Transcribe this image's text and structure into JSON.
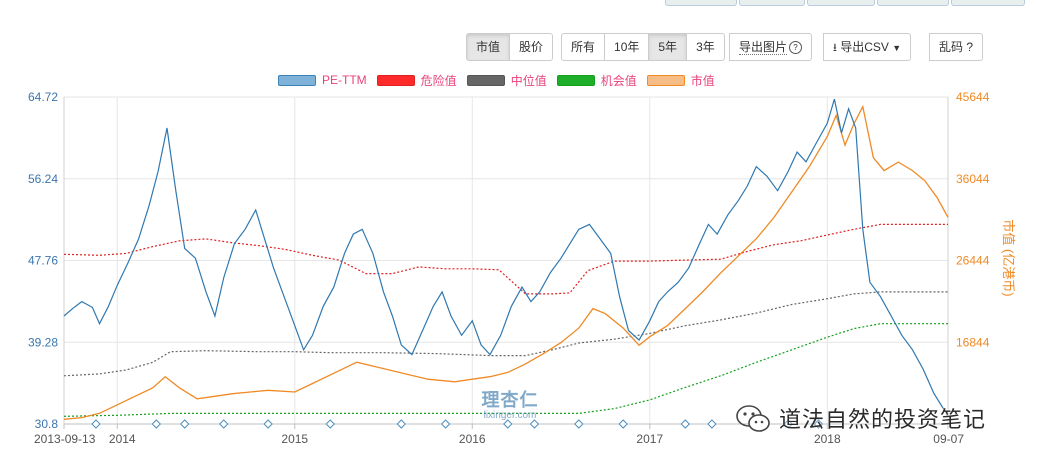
{
  "toolbar": {
    "group_metric": [
      "市值",
      "股价"
    ],
    "group_range": [
      "所有",
      "10年",
      "5年",
      "3年"
    ],
    "export_image": "导出图片",
    "export_image_help": "?",
    "export_csv": "导出CSV",
    "garbled": "乱码 ?",
    "active_metric": "市值",
    "active_range": "5年"
  },
  "legend": {
    "items": [
      {
        "label": "PE-TTM",
        "color": "#3b82b6",
        "fill": "#7fb2d8"
      },
      {
        "label": "危险值",
        "color": "#e02020",
        "fill": "#ff2a2a"
      },
      {
        "label": "中位值",
        "color": "#555555",
        "fill": "#666666"
      },
      {
        "label": "机会值",
        "color": "#14a01e",
        "fill": "#1fae2a"
      },
      {
        "label": "市值",
        "color": "#ef8a25",
        "fill": "#f7bd86"
      }
    ]
  },
  "watermark": {
    "cn": "理杏仁",
    "en": "lixinger.com"
  },
  "wechat": {
    "text": "道法自然的投资笔记"
  },
  "chart_data": {
    "type": "line",
    "x_tick_labels": [
      "2013-09-13",
      "2014",
      "2015",
      "2016",
      "2017",
      "2018",
      "09-07"
    ],
    "x_tick_years": [
      2013.7,
      2014.0,
      2015.0,
      2016.0,
      2017.0,
      2018.0,
      2018.68
    ],
    "y_left": {
      "ticks": [
        30.8,
        39.28,
        47.76,
        56.24,
        64.72
      ],
      "range": [
        30.8,
        64.72
      ]
    },
    "y_right": {
      "label": "市值 (亿港币)",
      "ticks": [
        16844,
        26444,
        36044,
        45644
      ],
      "range": [
        7244,
        45644
      ]
    },
    "grid": true,
    "series": [
      {
        "name": "PE-TTM",
        "axis": "left",
        "points": [
          [
            2013.7,
            42.0
          ],
          [
            2013.75,
            42.8
          ],
          [
            2013.8,
            43.5
          ],
          [
            2013.86,
            42.9
          ],
          [
            2013.9,
            41.2
          ],
          [
            2013.95,
            43.0
          ],
          [
            2014.0,
            45.2
          ],
          [
            2014.06,
            47.5
          ],
          [
            2014.12,
            50.0
          ],
          [
            2014.18,
            53.5
          ],
          [
            2014.23,
            57.0
          ],
          [
            2014.28,
            61.5
          ],
          [
            2014.33,
            55.0
          ],
          [
            2014.38,
            49.0
          ],
          [
            2014.44,
            48.0
          ],
          [
            2014.5,
            44.5
          ],
          [
            2014.55,
            42.0
          ],
          [
            2014.6,
            46.0
          ],
          [
            2014.66,
            49.5
          ],
          [
            2014.72,
            51.0
          ],
          [
            2014.78,
            53.0
          ],
          [
            2014.83,
            50.0
          ],
          [
            2014.88,
            47.0
          ],
          [
            2014.94,
            44.0
          ],
          [
            2015.0,
            41.0
          ],
          [
            2015.05,
            38.5
          ],
          [
            2015.1,
            40.0
          ],
          [
            2015.16,
            43.0
          ],
          [
            2015.22,
            45.0
          ],
          [
            2015.28,
            48.5
          ],
          [
            2015.33,
            50.5
          ],
          [
            2015.38,
            51.0
          ],
          [
            2015.44,
            48.5
          ],
          [
            2015.5,
            44.5
          ],
          [
            2015.55,
            42.0
          ],
          [
            2015.6,
            39.0
          ],
          [
            2015.66,
            38.0
          ],
          [
            2015.72,
            40.5
          ],
          [
            2015.78,
            43.0
          ],
          [
            2015.83,
            44.5
          ],
          [
            2015.88,
            42.0
          ],
          [
            2015.94,
            40.0
          ],
          [
            2016.0,
            41.5
          ],
          [
            2016.05,
            39.0
          ],
          [
            2016.1,
            38.0
          ],
          [
            2016.16,
            40.0
          ],
          [
            2016.22,
            43.0
          ],
          [
            2016.28,
            45.0
          ],
          [
            2016.33,
            43.5
          ],
          [
            2016.38,
            44.5
          ],
          [
            2016.44,
            46.5
          ],
          [
            2016.5,
            48.0
          ],
          [
            2016.55,
            49.5
          ],
          [
            2016.6,
            51.0
          ],
          [
            2016.66,
            51.5
          ],
          [
            2016.72,
            50.0
          ],
          [
            2016.78,
            48.5
          ],
          [
            2016.83,
            44.0
          ],
          [
            2016.88,
            40.5
          ],
          [
            2016.94,
            39.5
          ],
          [
            2017.0,
            41.5
          ],
          [
            2017.05,
            43.5
          ],
          [
            2017.1,
            44.5
          ],
          [
            2017.16,
            45.5
          ],
          [
            2017.22,
            47.0
          ],
          [
            2017.28,
            49.5
          ],
          [
            2017.33,
            51.5
          ],
          [
            2017.38,
            50.5
          ],
          [
            2017.44,
            52.5
          ],
          [
            2017.5,
            54.0
          ],
          [
            2017.55,
            55.5
          ],
          [
            2017.6,
            57.5
          ],
          [
            2017.66,
            56.5
          ],
          [
            2017.72,
            55.0
          ],
          [
            2017.78,
            57.0
          ],
          [
            2017.83,
            59.0
          ],
          [
            2017.88,
            58.0
          ],
          [
            2017.94,
            60.0
          ],
          [
            2018.0,
            62.0
          ],
          [
            2018.04,
            64.5
          ],
          [
            2018.08,
            61.0
          ],
          [
            2018.12,
            63.5
          ],
          [
            2018.16,
            61.5
          ],
          [
            2018.2,
            51.0
          ],
          [
            2018.24,
            45.5
          ],
          [
            2018.3,
            44.0
          ],
          [
            2018.36,
            42.0
          ],
          [
            2018.42,
            40.0
          ],
          [
            2018.48,
            38.5
          ],
          [
            2018.54,
            36.5
          ],
          [
            2018.6,
            34.0
          ],
          [
            2018.65,
            32.5
          ],
          [
            2018.68,
            31.8
          ]
        ]
      },
      {
        "name": "危险值",
        "axis": "left",
        "points": [
          [
            2013.7,
            48.4
          ],
          [
            2013.9,
            48.3
          ],
          [
            2014.05,
            48.5
          ],
          [
            2014.2,
            49.2
          ],
          [
            2014.35,
            49.8
          ],
          [
            2014.5,
            50.0
          ],
          [
            2014.65,
            49.6
          ],
          [
            2014.8,
            49.3
          ],
          [
            2014.95,
            48.9
          ],
          [
            2015.1,
            48.3
          ],
          [
            2015.25,
            47.8
          ],
          [
            2015.4,
            46.4
          ],
          [
            2015.55,
            46.4
          ],
          [
            2015.7,
            47.1
          ],
          [
            2015.85,
            46.9
          ],
          [
            2016.0,
            46.9
          ],
          [
            2016.15,
            46.8
          ],
          [
            2016.3,
            44.3
          ],
          [
            2016.45,
            44.3
          ],
          [
            2016.55,
            44.4
          ],
          [
            2016.65,
            46.7
          ],
          [
            2016.8,
            47.7
          ],
          [
            2017.0,
            47.7
          ],
          [
            2017.2,
            47.8
          ],
          [
            2017.4,
            47.9
          ],
          [
            2017.55,
            48.7
          ],
          [
            2017.7,
            49.4
          ],
          [
            2017.85,
            49.8
          ],
          [
            2018.0,
            50.4
          ],
          [
            2018.15,
            51.0
          ],
          [
            2018.3,
            51.5
          ],
          [
            2018.5,
            51.5
          ],
          [
            2018.68,
            51.5
          ]
        ]
      },
      {
        "name": "中位值",
        "axis": "left",
        "points": [
          [
            2013.7,
            35.8
          ],
          [
            2013.9,
            36.0
          ],
          [
            2014.05,
            36.4
          ],
          [
            2014.2,
            37.2
          ],
          [
            2014.3,
            38.3
          ],
          [
            2014.5,
            38.4
          ],
          [
            2014.8,
            38.3
          ],
          [
            2015.0,
            38.3
          ],
          [
            2015.2,
            38.2
          ],
          [
            2015.5,
            38.2
          ],
          [
            2015.8,
            38.1
          ],
          [
            2016.1,
            37.9
          ],
          [
            2016.3,
            37.9
          ],
          [
            2016.45,
            38.5
          ],
          [
            2016.6,
            39.2
          ],
          [
            2016.8,
            39.6
          ],
          [
            2017.0,
            40.2
          ],
          [
            2017.2,
            41.0
          ],
          [
            2017.4,
            41.6
          ],
          [
            2017.6,
            42.3
          ],
          [
            2017.8,
            43.2
          ],
          [
            2018.0,
            43.8
          ],
          [
            2018.15,
            44.3
          ],
          [
            2018.3,
            44.5
          ],
          [
            2018.68,
            44.5
          ]
        ]
      },
      {
        "name": "机会值",
        "axis": "left",
        "points": [
          [
            2013.7,
            31.6
          ],
          [
            2014.0,
            31.7
          ],
          [
            2014.3,
            31.9
          ],
          [
            2015.0,
            31.9
          ],
          [
            2015.6,
            31.9
          ],
          [
            2016.0,
            31.9
          ],
          [
            2016.3,
            31.9
          ],
          [
            2016.6,
            31.9
          ],
          [
            2016.8,
            32.4
          ],
          [
            2017.0,
            33.3
          ],
          [
            2017.2,
            34.6
          ],
          [
            2017.4,
            35.8
          ],
          [
            2017.6,
            37.2
          ],
          [
            2017.8,
            38.5
          ],
          [
            2018.0,
            39.8
          ],
          [
            2018.15,
            40.7
          ],
          [
            2018.3,
            41.2
          ],
          [
            2018.68,
            41.2
          ]
        ]
      },
      {
        "name": "市值",
        "axis": "right",
        "points": [
          [
            2013.7,
            7800
          ],
          [
            2013.8,
            8000
          ],
          [
            2013.9,
            8500
          ],
          [
            2014.0,
            9500
          ],
          [
            2014.1,
            10500
          ],
          [
            2014.2,
            11500
          ],
          [
            2014.27,
            12800
          ],
          [
            2014.35,
            11500
          ],
          [
            2014.45,
            10200
          ],
          [
            2014.55,
            10500
          ],
          [
            2014.65,
            10800
          ],
          [
            2014.75,
            11000
          ],
          [
            2014.85,
            11200
          ],
          [
            2015.0,
            11000
          ],
          [
            2015.1,
            12000
          ],
          [
            2015.25,
            13500
          ],
          [
            2015.35,
            14500
          ],
          [
            2015.45,
            14000
          ],
          [
            2015.55,
            13500
          ],
          [
            2015.65,
            13000
          ],
          [
            2015.75,
            12500
          ],
          [
            2015.9,
            12200
          ],
          [
            2016.0,
            12500
          ],
          [
            2016.1,
            12800
          ],
          [
            2016.2,
            13300
          ],
          [
            2016.3,
            14300
          ],
          [
            2016.4,
            15500
          ],
          [
            2016.5,
            16800
          ],
          [
            2016.6,
            18500
          ],
          [
            2016.68,
            20800
          ],
          [
            2016.75,
            20200
          ],
          [
            2016.85,
            18500
          ],
          [
            2016.94,
            16500
          ],
          [
            2017.0,
            17500
          ],
          [
            2017.1,
            18800
          ],
          [
            2017.2,
            20800
          ],
          [
            2017.3,
            22800
          ],
          [
            2017.4,
            25000
          ],
          [
            2017.5,
            27000
          ],
          [
            2017.6,
            29000
          ],
          [
            2017.7,
            31500
          ],
          [
            2017.8,
            34500
          ],
          [
            2017.9,
            37500
          ],
          [
            2018.0,
            41000
          ],
          [
            2018.05,
            43500
          ],
          [
            2018.1,
            40000
          ],
          [
            2018.15,
            42500
          ],
          [
            2018.2,
            44500
          ],
          [
            2018.26,
            38500
          ],
          [
            2018.32,
            37000
          ],
          [
            2018.4,
            38000
          ],
          [
            2018.48,
            37000
          ],
          [
            2018.55,
            35800
          ],
          [
            2018.62,
            33800
          ],
          [
            2018.68,
            31500
          ]
        ]
      }
    ]
  }
}
